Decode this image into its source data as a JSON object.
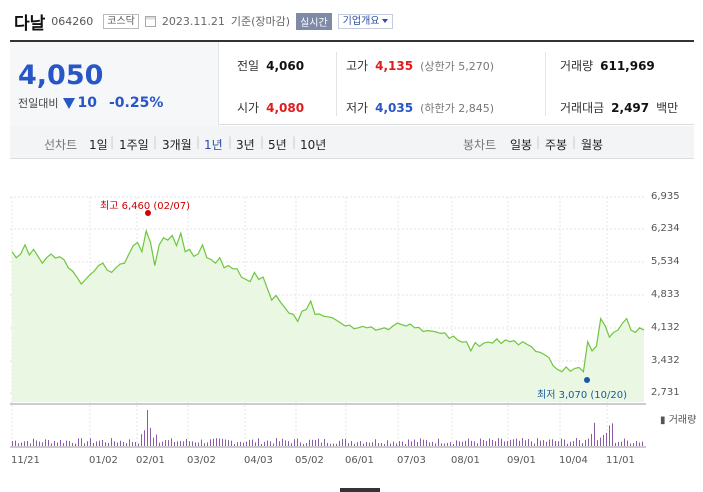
{
  "header": {
    "name": "다날",
    "code": "064260",
    "market": "코스닥",
    "date": "2023.11.21",
    "basis": "기준(장마감)",
    "realtime": "실시간",
    "corp_info": "기업개요"
  },
  "price": {
    "current": "4,050",
    "change_label": "전일대비",
    "change": "10",
    "change_pct": "-0.25%",
    "direction": "down"
  },
  "quotes": {
    "prev_close_label": "전일",
    "prev_close": "4,060",
    "open_label": "시가",
    "open": "4,080",
    "high_label": "고가",
    "high": "4,135",
    "upper_limit": "(상한가 5,270)",
    "low_label": "저가",
    "low": "4,035",
    "lower_limit": "(하한가 2,845)",
    "volume_label": "거래량",
    "volume": "611,969",
    "amount_label": "거래대금",
    "amount": "2,497",
    "amount_unit": "백만"
  },
  "toolbar": {
    "line_label": "선차트",
    "periods": [
      "1일",
      "1주일",
      "3개월",
      "1년",
      "3년",
      "5년",
      "10년"
    ],
    "selected_period": "1년",
    "candle_label": "봉차트",
    "candles": [
      "일봉",
      "주봉",
      "월봉"
    ]
  },
  "chart_data": {
    "type": "area",
    "y_ticks": [
      "6,935",
      "6,234",
      "5,534",
      "4,833",
      "4,132",
      "3,432",
      "2,731"
    ],
    "ylim": [
      2731,
      6935
    ],
    "x_ticks": [
      "11/21",
      "01/02",
      "02/01",
      "03/02",
      "04/03",
      "05/02",
      "06/01",
      "07/03",
      "08/01",
      "09/01",
      "10/04",
      "11/01"
    ],
    "high_annotation": "최고 6,460 (02/07)",
    "low_annotation": "최저 3,070 (10/20)",
    "volume_label": "거래량",
    "colors": {
      "line": "#6ec63e",
      "fill": "#eaf7e2",
      "high": "#d60000",
      "low": "#1a5aa0",
      "volume": "#8a5aa8"
    },
    "values": [
      5750,
      5620,
      5700,
      5900,
      5680,
      5800,
      5650,
      5500,
      5620,
      5700,
      5610,
      5640,
      5580,
      5400,
      5330,
      5200,
      5050,
      5150,
      5250,
      5330,
      5450,
      5500,
      5350,
      5300,
      5400,
      5480,
      5500,
      5700,
      5880,
      5950,
      5750,
      6200,
      5950,
      5450,
      5900,
      6050,
      6000,
      6100,
      5880,
      6150,
      5750,
      5800,
      5650,
      5700,
      5900,
      5620,
      5580,
      5500,
      5620,
      5400,
      5450,
      5380,
      5380,
      5200,
      5150,
      5100,
      5300,
      5150,
      5200,
      4950,
      4700,
      4800,
      4660,
      4540,
      4420,
      4390,
      4240,
      4460,
      4500,
      4680,
      4390,
      4400,
      4350,
      4340,
      4320,
      4260,
      4200,
      4140,
      4160,
      4080,
      4100,
      4130,
      4100,
      4120,
      4050,
      4070,
      4100,
      4060,
      4140,
      4200,
      4170,
      4140,
      4180,
      4100,
      4110,
      4020,
      4040,
      4030,
      4010,
      3980,
      3990,
      3870,
      3920,
      3830,
      3790,
      3800,
      3600,
      3780,
      3700,
      3770,
      3790,
      3770,
      3860,
      3760,
      3840,
      3800,
      3820,
      3730,
      3800,
      3740,
      3690,
      3590,
      3570,
      3520,
      3460,
      3280,
      3200,
      3150,
      3250,
      3160,
      3220,
      3240,
      3150,
      3800,
      3600,
      3700,
      4300,
      4150,
      3900,
      4000,
      4050,
      4200,
      4300,
      4050,
      4000,
      4100,
      4050
    ]
  }
}
